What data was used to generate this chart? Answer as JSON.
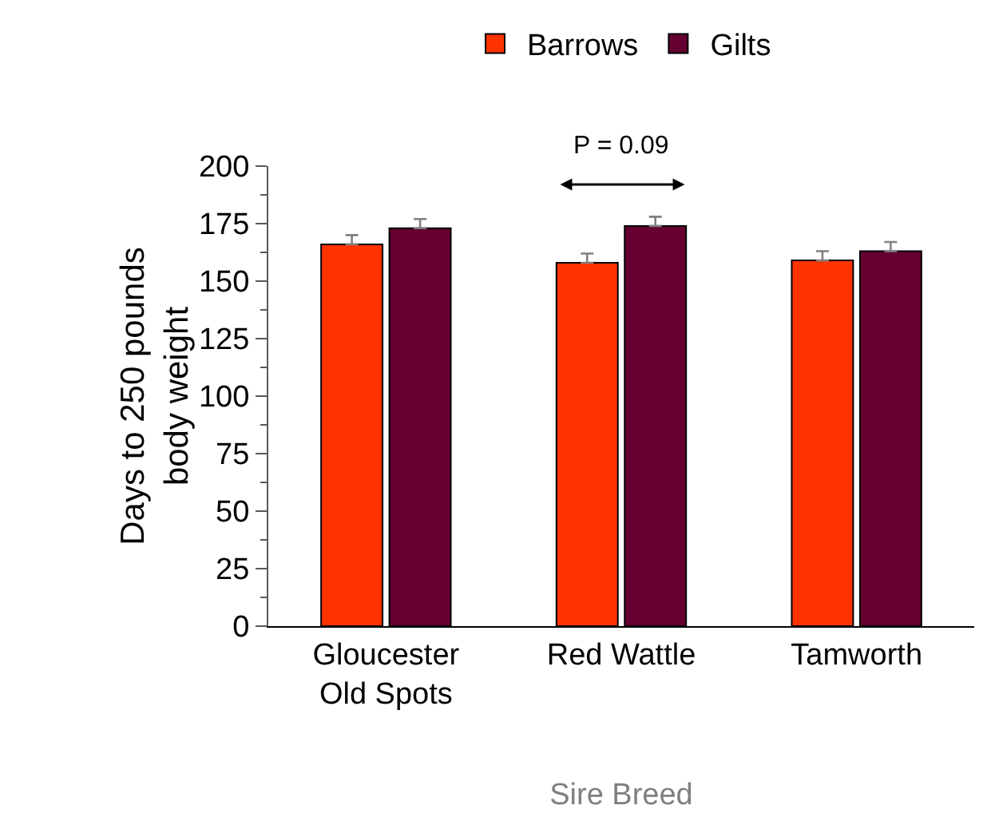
{
  "chart_data": {
    "type": "bar",
    "categories": [
      "Gloucester Old Spots",
      "Red Wattle",
      "Tamworth"
    ],
    "series": [
      {
        "name": "Barrows",
        "color": "#ff3300",
        "values": [
          166,
          158,
          159
        ],
        "errors": [
          [
            166,
            170
          ],
          [
            158,
            162
          ],
          [
            159,
            163
          ]
        ]
      },
      {
        "name": "Gilts",
        "color": "#660033",
        "values": [
          173,
          174,
          163
        ],
        "errors": [
          [
            173,
            177
          ],
          [
            174,
            178
          ],
          [
            163,
            167
          ]
        ]
      }
    ],
    "xlabel": "Sire Breed",
    "ylabel": "Days to 250 pounds body weight",
    "ylim": [
      0,
      200
    ],
    "yticks": [
      0,
      25,
      50,
      75,
      100,
      125,
      150,
      175,
      200
    ],
    "annotations": [
      "P = 0.09"
    ],
    "legend": "top",
    "grid": false
  }
}
